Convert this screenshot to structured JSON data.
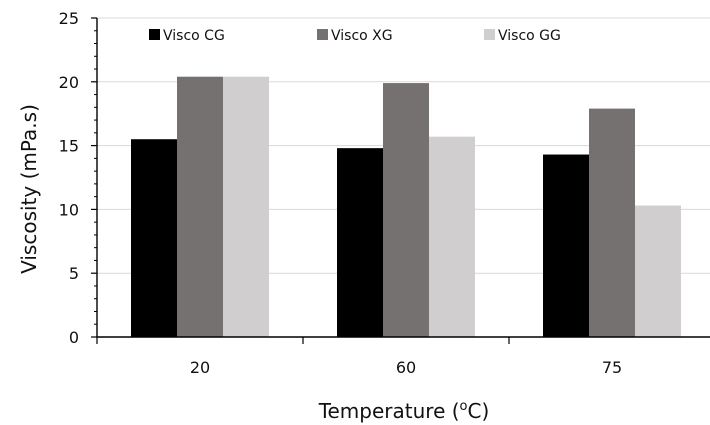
{
  "chart_data": {
    "type": "bar",
    "categories": [
      "20",
      "60",
      "75"
    ],
    "series": [
      {
        "name": "Visco CG",
        "color": "#000000",
        "values": [
          15.5,
          14.8,
          14.3
        ]
      },
      {
        "name": "Visco XG",
        "color": "#767171",
        "values": [
          20.4,
          19.9,
          17.9
        ]
      },
      {
        "name": "Visco GG",
        "color": "#d0cece",
        "values": [
          20.4,
          15.7,
          10.3
        ]
      }
    ],
    "xlabel": "Temperature (",
    "xlabel_degree": "o",
    "xlabel_unit": "C)",
    "ylabel": "Viscosity (mPa.s)",
    "ylim": [
      0,
      25
    ],
    "yticks": [
      "0",
      "5",
      "10",
      "15",
      "20",
      "25"
    ],
    "grid": true,
    "legend_position": "top"
  }
}
